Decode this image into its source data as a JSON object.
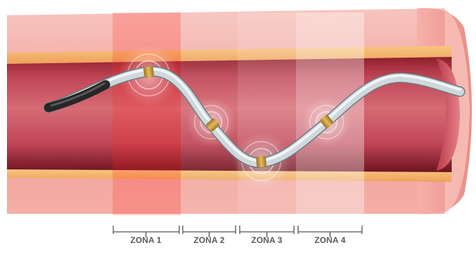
{
  "zones": [
    {
      "label": "ZONA 1"
    },
    {
      "label": "ZONA 2"
    },
    {
      "label": "ZONA 3"
    },
    {
      "label": "ZONA 4"
    }
  ],
  "colors": {
    "vessel_wall": "#f2a29b",
    "lumen_dark": "#7e1824",
    "lumen_mid": "#c84a57",
    "stripe": "#f4b469",
    "wire": "#cdd6da",
    "wire_tip": "#2b2b2b",
    "electrode": "#c99a3c",
    "label": "#555a5f"
  },
  "icons": {
    "electrode": "electrode-icon",
    "glow": "glow-ring-icon"
  }
}
